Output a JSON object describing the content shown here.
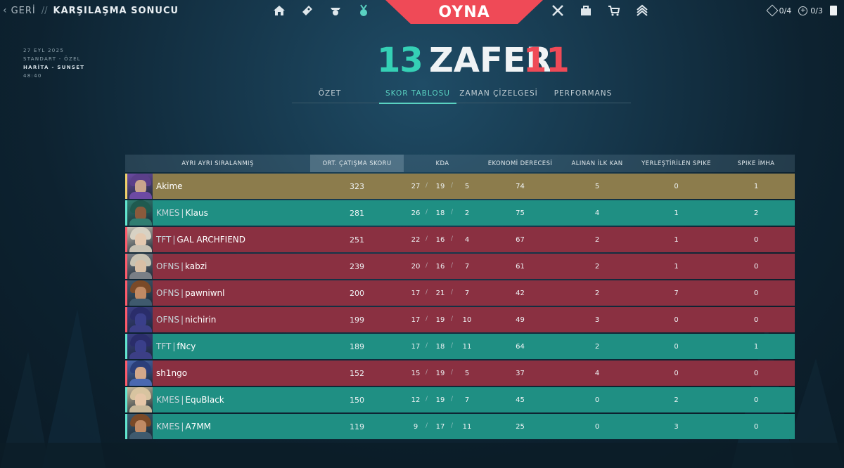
{
  "topbar": {
    "back_label": "GERİ",
    "separator": "//",
    "title": "KARŞILAŞMA SONUCU",
    "play_label": "OYNA",
    "nav_left": [
      "home-icon",
      "pass-icon",
      "career-icon",
      "medal-icon"
    ],
    "nav_right": [
      "agents-icon",
      "locker-icon",
      "store-icon",
      "rank-icon"
    ],
    "currency": [
      {
        "icon": "diamond-icon",
        "value": "0/4"
      },
      {
        "icon": "plus-circle-icon",
        "value": "0/3"
      },
      {
        "icon": "card-icon",
        "value": ""
      }
    ]
  },
  "match": {
    "date": "27 EYL 2025",
    "mode": "STANDART - ÖZEL",
    "map": "HARİTA - SUNSET",
    "duration": "48:40"
  },
  "score": {
    "ally": "13",
    "result": "ZAFER",
    "enemy": "11"
  },
  "tabs": [
    "ÖZET",
    "SKOR TABLOSU",
    "ZAMAN ÇİZELGESİ",
    "PERFORMANS"
  ],
  "active_tab": "SKOR TABLOSU",
  "table": {
    "headers": {
      "name": "AYRI AYRI SIRALANMIŞ",
      "acs": "ORT. ÇATIŞMA SKORU",
      "kda": "KDA",
      "eco": "EKONOMİ DERECESİ",
      "fb": "ALINAN İLK KAN",
      "plant": "YERLEŞTİRİLEN SPIKE",
      "defuse": "SPIKE İMHA"
    },
    "rows": [
      {
        "team": "yellow",
        "tag": "",
        "name": "Akime",
        "acs": "323",
        "k": "27",
        "d": "19",
        "a": "5",
        "eco": "74",
        "fb": "5",
        "plant": "0",
        "defuse": "1",
        "agent": "agent-portrait-icon"
      },
      {
        "team": "green",
        "tag": "KMES",
        "name": "Klaus",
        "acs": "281",
        "k": "26",
        "d": "18",
        "a": "2",
        "eco": "75",
        "fb": "4",
        "plant": "1",
        "defuse": "2",
        "agent": "agent-portrait-icon"
      },
      {
        "team": "red",
        "tag": "TFT",
        "name": "GAL ARCHFIEND",
        "acs": "251",
        "k": "22",
        "d": "16",
        "a": "4",
        "eco": "67",
        "fb": "2",
        "plant": "1",
        "defuse": "0",
        "agent": "agent-portrait-icon"
      },
      {
        "team": "red",
        "tag": "OFNS",
        "name": "kabzi",
        "acs": "239",
        "k": "20",
        "d": "16",
        "a": "7",
        "eco": "61",
        "fb": "2",
        "plant": "1",
        "defuse": "0",
        "agent": "agent-portrait-icon"
      },
      {
        "team": "red",
        "tag": "OFNS",
        "name": "pawniwnl",
        "acs": "200",
        "k": "17",
        "d": "21",
        "a": "7",
        "eco": "42",
        "fb": "2",
        "plant": "7",
        "defuse": "0",
        "agent": "agent-portrait-icon"
      },
      {
        "team": "red",
        "tag": "OFNS",
        "name": "nichirin",
        "acs": "199",
        "k": "17",
        "d": "19",
        "a": "10",
        "eco": "49",
        "fb": "3",
        "plant": "0",
        "defuse": "0",
        "agent": "agent-portrait-icon"
      },
      {
        "team": "green",
        "tag": "TFT",
        "name": "fNcy",
        "acs": "189",
        "k": "17",
        "d": "18",
        "a": "11",
        "eco": "64",
        "fb": "2",
        "plant": "0",
        "defuse": "1",
        "agent": "agent-portrait-icon"
      },
      {
        "team": "red",
        "tag": "",
        "name": "sh1ngo",
        "acs": "152",
        "k": "15",
        "d": "19",
        "a": "5",
        "eco": "37",
        "fb": "4",
        "plant": "0",
        "defuse": "0",
        "agent": "agent-portrait-icon"
      },
      {
        "team": "green",
        "tag": "KMES",
        "name": "EquBlack",
        "acs": "150",
        "k": "12",
        "d": "19",
        "a": "7",
        "eco": "45",
        "fb": "0",
        "plant": "2",
        "defuse": "0",
        "agent": "agent-portrait-icon"
      },
      {
        "team": "green",
        "tag": "KMES",
        "name": "A7MM",
        "acs": "119",
        "k": "9",
        "d": "17",
        "a": "11",
        "eco": "25",
        "fb": "0",
        "plant": "3",
        "defuse": "0",
        "agent": "agent-portrait-icon"
      }
    ]
  },
  "colors": {
    "ally": "#35d0b5",
    "enemy": "#ef4a57",
    "self_row": "#8c7c4c",
    "ally_row": "#1f8f83",
    "enemy_row": "#8a3041"
  }
}
